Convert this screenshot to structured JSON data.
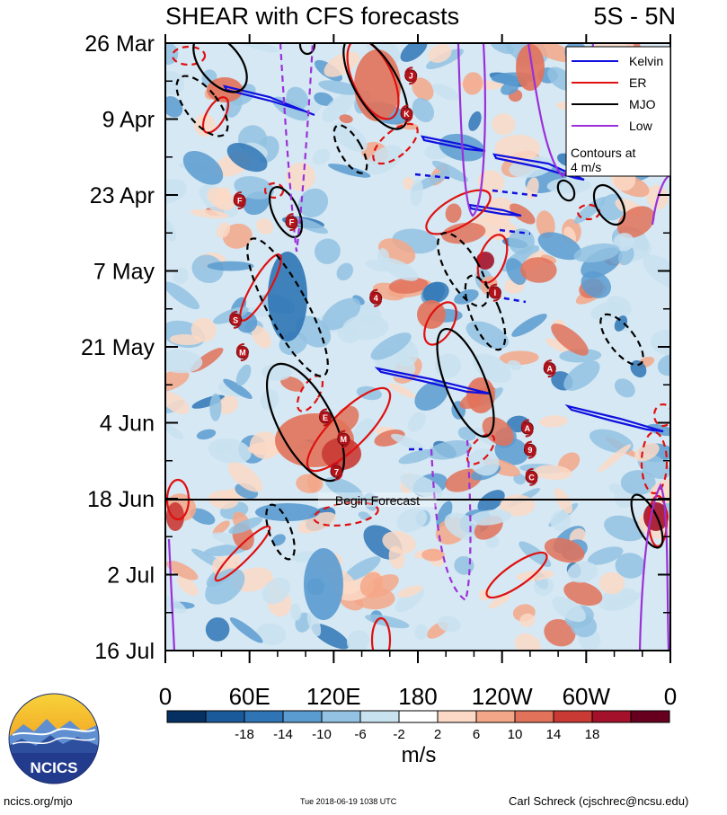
{
  "chart_data": {
    "type": "heatmap",
    "title": "SHEAR with CFS forecasts",
    "region": "5S - 5N",
    "y_ticks": [
      "26 Mar",
      "9 Apr",
      "23 Apr",
      "7 May",
      "21 May",
      "4 Jun",
      "18 Jun",
      "2 Jul",
      "16 Jul"
    ],
    "x_ticks": [
      "0",
      "60E",
      "120E",
      "180",
      "120W",
      "60W",
      "0"
    ],
    "forecast_label": "Begin Forecast",
    "forecast_start": "18 Jun",
    "colorbar": {
      "unit": "m/s",
      "labels": [
        "-18",
        "-14",
        "-10",
        "-6",
        "-2",
        "2",
        "6",
        "10",
        "14",
        "18"
      ],
      "colors": [
        "#053061",
        "#1b5a9a",
        "#2f75b5",
        "#5a9bd0",
        "#93c2e2",
        "#c9e2f0",
        "#ffffff",
        "#fbd9c6",
        "#f4a788",
        "#e2725a",
        "#c93a34",
        "#a3122a",
        "#67001f"
      ]
    },
    "legend": {
      "placement": "top-right",
      "items": [
        {
          "name": "Kelvin",
          "color": "#1010e0"
        },
        {
          "name": "ER",
          "color": "#e01010"
        },
        {
          "name": "MJO",
          "color": "#000000"
        },
        {
          "name": "Low",
          "color": "#9b30d9"
        }
      ],
      "note_line1": "Contours at",
      "note_line2": "4 m/s"
    },
    "storms": [
      {
        "label": "J",
        "lon": 175,
        "date": "1 Apr"
      },
      {
        "label": "K",
        "lon": 172,
        "date": "8 Apr"
      },
      {
        "label": "F",
        "lon": 53,
        "date": "24 Apr"
      },
      {
        "label": "F",
        "lon": 90,
        "date": "28 Apr"
      },
      {
        "label": "4",
        "lon": 150,
        "date": "12 May"
      },
      {
        "label": "I",
        "lon": 235,
        "date": "11 May"
      },
      {
        "label": "S",
        "lon": 50,
        "date": "16 May"
      },
      {
        "label": "M",
        "lon": 55,
        "date": "22 May"
      },
      {
        "label": "A",
        "lon": 274,
        "date": "25 May"
      },
      {
        "label": "E",
        "lon": 114,
        "date": "3 Jun"
      },
      {
        "label": "A",
        "lon": 258,
        "date": "5 Jun"
      },
      {
        "label": "M",
        "lon": 127,
        "date": "7 Jun"
      },
      {
        "label": "9",
        "lon": 260,
        "date": "9 Jun"
      },
      {
        "label": "C",
        "lon": 261,
        "date": "14 Jun"
      },
      {
        "label": "7",
        "lon": 122,
        "date": "13 Jun"
      }
    ]
  },
  "logo": {
    "text": "NCICS"
  },
  "footer": {
    "left": "ncics.org/mjo",
    "center": "Tue 2018-06-19 1038 UTC",
    "right": "Carl Schreck (cjschrec@ncsu.edu)"
  }
}
